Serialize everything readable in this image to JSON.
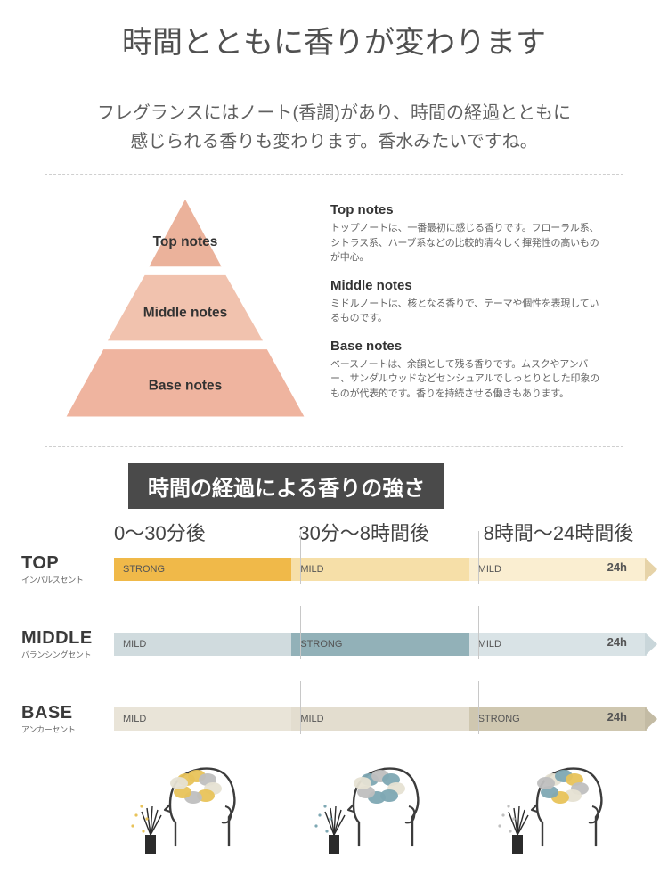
{
  "title": "時間とともに香りが変わります",
  "subtitle_line1": "フレグランスにはノート(香調)があり、時間の経過とともに",
  "subtitle_line2": "感じられる香りも変わります。香水みたいですね。",
  "pyramid": {
    "colors": {
      "top": "#ebb29b",
      "middle": "#f1c2ae",
      "base": "#efb49f",
      "gap": "#ffffff"
    },
    "labels": {
      "top": "Top notes",
      "middle": "Middle notes",
      "base": "Base notes"
    },
    "label_color": "#333333",
    "label_fontsize": 16
  },
  "notes": {
    "top": {
      "title": "Top notes",
      "desc": "トップノートは、一番最初に感じる香りです。フローラル系、シトラス系、ハーブ系などの比較的清々しく揮発性の高いものが中心。"
    },
    "middle": {
      "title": "Middle notes",
      "desc": "ミドルノートは、核となる香りで、テーマや個性を表現しているものです。"
    },
    "base": {
      "title": "Base notes",
      "desc": "ベースノートは、余韻として残る香りです。ムスクやアンバー、サンダルウッドなどセンシュアルでしっとりとした印象のものが代表的です。香りを持続させる働きもあります。"
    }
  },
  "intensity": {
    "header": "時間の経過による香りの強さ",
    "time_labels": [
      "0～30分後",
      "30分～8時間後",
      "8時間～24時間後"
    ],
    "end_label": "24h",
    "levels": {
      "strong": "STRONG",
      "mild": "MILD"
    },
    "rows": [
      {
        "key": "top",
        "label": "TOP",
        "sublabel": "インパルスセント",
        "segments": [
          {
            "level": "strong",
            "color": "#f0b949"
          },
          {
            "level": "mild",
            "color": "#f6dfa8"
          },
          {
            "level": "mild",
            "color": "#faeed1"
          }
        ],
        "arrow_color": "#e6d3a8"
      },
      {
        "key": "middle",
        "label": "MIDDLE",
        "sublabel": "バランシングセント",
        "segments": [
          {
            "level": "mild",
            "color": "#d0dbde"
          },
          {
            "level": "strong",
            "color": "#92b1b8"
          },
          {
            "level": "mild",
            "color": "#d9e3e6"
          }
        ],
        "arrow_color": "#c9d6da"
      },
      {
        "key": "base",
        "label": "BASE",
        "sublabel": "アンカーセント",
        "segments": [
          {
            "level": "mild",
            "color": "#e9e4d8"
          },
          {
            "level": "mild",
            "color": "#e3ddcf"
          },
          {
            "level": "strong",
            "color": "#cfc7b0"
          }
        ],
        "arrow_color": "#c3bba4"
      }
    ]
  },
  "heads": {
    "outline_color": "#3c3c3c",
    "diffuser_color": "#2b2b2b",
    "palette": {
      "yellow": "#e8c35a",
      "blue": "#7ea8b3",
      "grey": "#bfbfbf",
      "light": "#e6e2d3"
    }
  }
}
